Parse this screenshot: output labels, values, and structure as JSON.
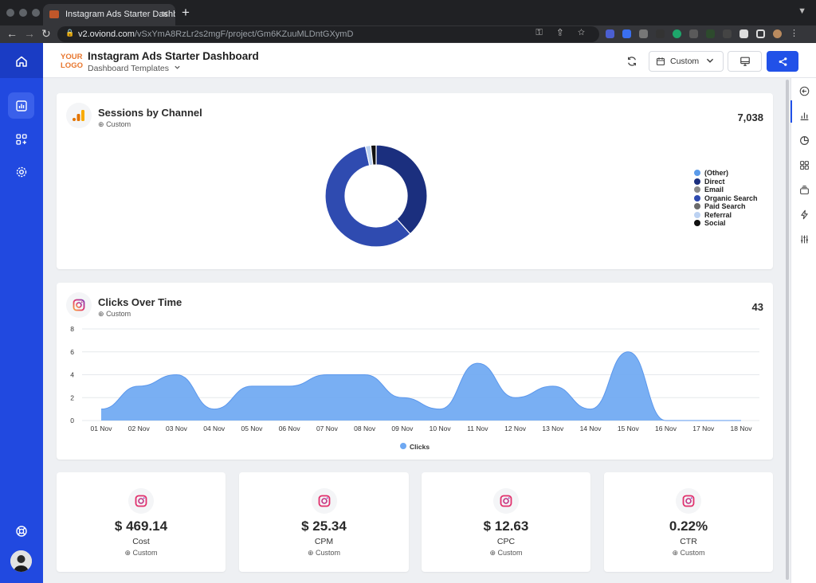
{
  "browser": {
    "tab_title": "Instagram Ads Starter Dashbo",
    "url_host": "v2.oviond.com",
    "url_path": "/vSxYmA8RzLr2s2mgF/project/Gm6KZuuMLDntGXymD"
  },
  "header": {
    "logo_line1": "YOUR",
    "logo_line2": "LOGO",
    "title": "Instagram Ads Starter Dashboard",
    "templates_label": "Dashboard Templates",
    "range_label": "Custom"
  },
  "colors": {
    "brand_blue": "#2149e0",
    "button_blue": "#2151e8",
    "area_fill": "#6ea8f2",
    "logo_orange": "#e8762d"
  },
  "sessions_card": {
    "title": "Sessions by Channel",
    "subtitle": "Custom",
    "total": "7,038"
  },
  "clicks_card": {
    "title": "Clicks Over Time",
    "subtitle": "Custom",
    "total": "43"
  },
  "kpis": [
    {
      "value": "$ 469.14",
      "label": "Cost",
      "sub": "Custom"
    },
    {
      "value": "$ 25.34",
      "label": "CPM",
      "sub": "Custom"
    },
    {
      "value": "$ 12.63",
      "label": "CPC",
      "sub": "Custom"
    },
    {
      "value": "0.22%",
      "label": "CTR",
      "sub": "Custom"
    }
  ],
  "chart_data": [
    {
      "type": "pie",
      "title": "Sessions by Channel",
      "legend_position": "right",
      "categories": [
        "(Other)",
        "Direct",
        "Email",
        "Organic Search",
        "Paid Search",
        "Referral",
        "Social"
      ],
      "values": [
        0,
        2700,
        0,
        4100,
        0,
        120,
        118
      ],
      "colors": [
        "#5b9bea",
        "#1b2f7e",
        "#8a8a8a",
        "#2f4bb0",
        "#6a6a6a",
        "#bcd2f2",
        "#111111"
      ]
    },
    {
      "type": "area",
      "title": "Clicks Over Time",
      "categories": [
        "01 Nov",
        "02 Nov",
        "03 Nov",
        "04 Nov",
        "05 Nov",
        "06 Nov",
        "07 Nov",
        "08 Nov",
        "09 Nov",
        "10 Nov",
        "11 Nov",
        "12 Nov",
        "13 Nov",
        "14 Nov",
        "15 Nov",
        "16 Nov",
        "17 Nov",
        "18 Nov"
      ],
      "series": [
        {
          "name": "Clicks",
          "values": [
            1,
            3,
            4,
            1,
            3,
            3,
            4,
            4,
            2,
            1,
            5,
            2,
            3,
            1,
            6,
            0,
            0,
            0
          ]
        }
      ],
      "ylim": [
        0,
        8
      ],
      "yticks": [
        0,
        2,
        4,
        6,
        8
      ],
      "grid": true,
      "legend_position": "bottom",
      "color": "#6ea8f2"
    }
  ]
}
